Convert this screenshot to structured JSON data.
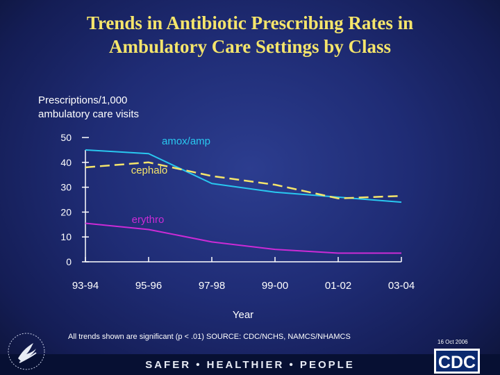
{
  "title": {
    "line1": "Trends in Antibiotic Prescribing Rates in",
    "line2": "Ambulatory Care Settings by Class"
  },
  "y_axis_label": {
    "line1": "Prescriptions/1,000",
    "line2": "ambulatory care visits"
  },
  "footnote": "All trends shown are significant (p < .01)  SOURCE: CDC/NCHS, NAMCS/NHAMCS",
  "date": "16 Oct 2006",
  "tagline": "SAFER • HEALTHIER • PEOPLE",
  "logos": {
    "cdc": "CDC",
    "hhs": "hhs-eagle-icon"
  },
  "colors": {
    "title": "#f5e56b",
    "background": "#1f2c75",
    "amox": "#29c8f0",
    "cephalo": "#f5e56b",
    "erythro": "#cc2bd6",
    "axis": "#ffffff"
  },
  "chart_data": {
    "type": "line",
    "title": "Trends in Antibiotic Prescribing Rates in Ambulatory Care Settings by Class",
    "xlabel": "Year",
    "ylabel": "Prescriptions/1,000 ambulatory care visits",
    "categories": [
      "93-94",
      "95-96",
      "97-98",
      "99-00",
      "01-02",
      "03-04"
    ],
    "ylim": [
      0,
      50
    ],
    "yticks": [
      0,
      10,
      20,
      30,
      40,
      50
    ],
    "series": [
      {
        "name": "amox/amp",
        "label": "amox/amp",
        "color": "#29c8f0",
        "style": "solid",
        "values": [
          45,
          43.5,
          31.5,
          28,
          26,
          24
        ]
      },
      {
        "name": "cephalo",
        "label": "cephalo",
        "color": "#f5e56b",
        "style": "dashed",
        "values": [
          38,
          40,
          34.5,
          31,
          25.5,
          26.5
        ]
      },
      {
        "name": "erythro",
        "label": "erythro",
        "color": "#cc2bd6",
        "style": "solid",
        "values": [
          15.5,
          13,
          8,
          5,
          3.5,
          3.5
        ]
      }
    ]
  }
}
